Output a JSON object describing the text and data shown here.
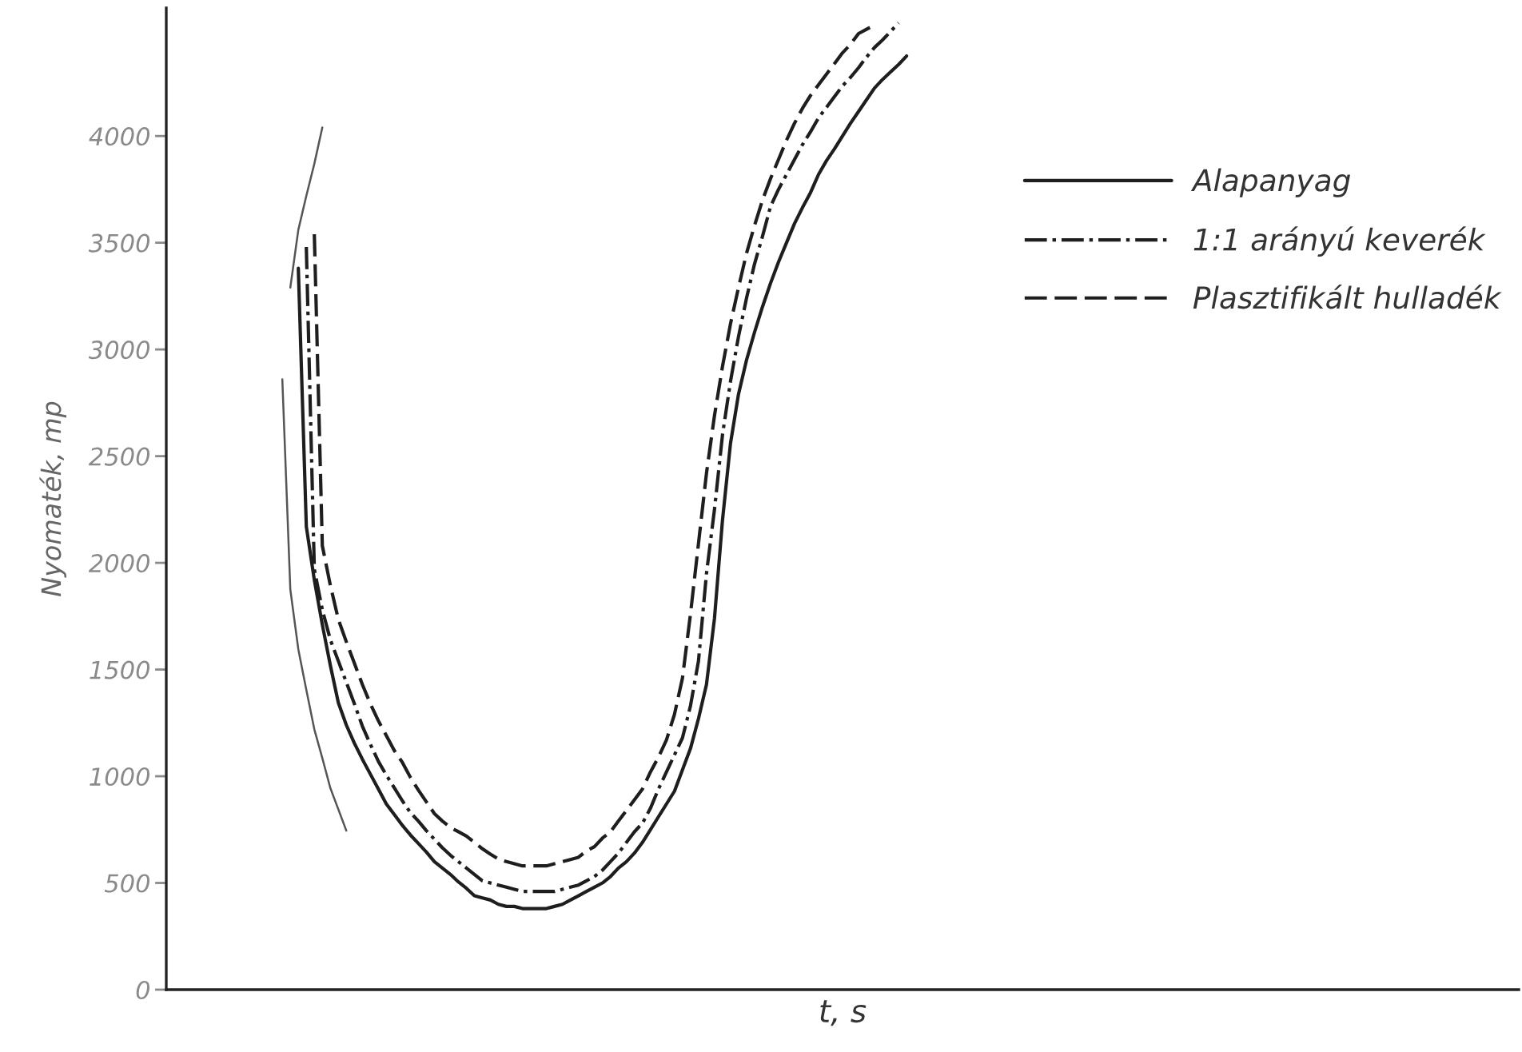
{
  "chart_data": {
    "type": "line",
    "xlabel": "t, s",
    "ylabel": "Nyomaték, mp",
    "categories": [
      null,
      null,
      null,
      null,
      null,
      null,
      null,
      null,
      null,
      null,
      null,
      null,
      null,
      null,
      null,
      null,
      null,
      null,
      null,
      null,
      null,
      null,
      null,
      null,
      null,
      null,
      null,
      null,
      null,
      null,
      null,
      null,
      null,
      null,
      null,
      null,
      null,
      null,
      null,
      null,
      null,
      null,
      null,
      null,
      null,
      null,
      null,
      null,
      null,
      null,
      null,
      null,
      null,
      null,
      null,
      null,
      null,
      null,
      null,
      null,
      null,
      null,
      null,
      null,
      null,
      null,
      null,
      null,
      null,
      null,
      null,
      null,
      null,
      null,
      null,
      null,
      null,
      null,
      null,
      null,
      null,
      null,
      null,
      null,
      null,
      null,
      null,
      null,
      null,
      null,
      null,
      null,
      null,
      null,
      null,
      null,
      null,
      null,
      null,
      null,
      null,
      null,
      null,
      null,
      null,
      null,
      null,
      null,
      null,
      null,
      null,
      null,
      null,
      null,
      null,
      null,
      null,
      null,
      null,
      null,
      null,
      null,
      null,
      null,
      null,
      null,
      null,
      null,
      null,
      null,
      null,
      null,
      null,
      null,
      null,
      null,
      null,
      null,
      null,
      null,
      null,
      null,
      null,
      null,
      null,
      null,
      null,
      null,
      null,
      null,
      null,
      null,
      null,
      null,
      null,
      null,
      null,
      null,
      null,
      null,
      null,
      null,
      null,
      null,
      null,
      null,
      null,
      null,
      null
    ],
    "ylim": [
      0,
      4600
    ],
    "yticks": [
      0,
      500,
      1000,
      1500,
      2000,
      2500,
      3000,
      3500,
      4000
    ],
    "legend": "top right",
    "series": [
      {
        "name": "Alapanyag",
        "color": "#1e1e1e",
        "line_style": "solid",
        "values": [
          null,
          null,
          null,
          null,
          null,
          null,
          null,
          null,
          null,
          null,
          null,
          null,
          null,
          null,
          null,
          null,
          3380,
          2170,
          1920,
          1710,
          1520,
          1345,
          1240,
          1155,
          1080,
          1010,
          940,
          870,
          820,
          770,
          725,
          685,
          645,
          600,
          570,
          540,
          505,
          475,
          440,
          430,
          420,
          400,
          390,
          390,
          380,
          380,
          380,
          380,
          390,
          400,
          420,
          440,
          460,
          480,
          500,
          530,
          570,
          600,
          640,
          690,
          750,
          810,
          870,
          930,
          1030,
          1130,
          1270,
          1430,
          1740,
          2200,
          2560,
          2790,
          2950,
          3080,
          3200,
          3310,
          3410,
          3500,
          3590,
          3665,
          3735,
          3820,
          3885,
          3940,
          4000,
          4060,
          4115,
          4170,
          4225,
          4265,
          4300,
          4335,
          4375,
          null,
          null,
          null,
          null,
          null,
          null,
          null,
          null,
          null,
          null,
          null,
          null,
          null,
          null,
          null,
          null,
          null,
          null,
          null,
          null,
          null,
          null,
          null,
          null,
          null,
          null,
          null,
          null,
          null,
          null,
          null,
          null,
          null,
          null,
          null,
          null,
          null,
          null,
          null,
          null,
          null,
          null,
          null,
          null,
          null,
          null,
          null,
          null,
          null,
          null,
          null,
          null,
          null,
          null,
          null,
          null,
          null,
          null,
          null,
          null,
          null,
          null,
          null,
          null,
          null,
          null,
          null,
          null,
          null,
          null,
          null,
          null,
          null,
          null,
          null,
          null
        ]
      },
      {
        "name": "1:1 arányú keverék",
        "color": "#1e1e1e",
        "line_style": "dashdot",
        "values": [
          null,
          null,
          null,
          null,
          null,
          null,
          null,
          null,
          null,
          null,
          null,
          null,
          null,
          null,
          null,
          null,
          null,
          3480,
          1970,
          1780,
          1640,
          1540,
          1440,
          1340,
          1235,
          1150,
          1070,
          1005,
          945,
          885,
          830,
          790,
          745,
          705,
          665,
          630,
          600,
          570,
          540,
          510,
          500,
          490,
          480,
          470,
          460,
          460,
          460,
          460,
          460,
          470,
          480,
          490,
          510,
          530,
          560,
          600,
          640,
          690,
          740,
          780,
          850,
          940,
          1020,
          1100,
          1180,
          1330,
          1540,
          1950,
          2250,
          2600,
          2850,
          3060,
          3240,
          3400,
          3530,
          3670,
          3750,
          3820,
          3890,
          3960,
          4020,
          4085,
          4135,
          4185,
          4235,
          4275,
          4320,
          4370,
          4415,
          4450,
          4490,
          4530,
          null,
          null,
          null,
          null,
          null,
          null,
          null,
          null,
          null,
          null,
          null,
          null,
          null,
          null,
          null,
          null,
          null,
          null,
          null,
          null,
          null,
          null,
          null,
          null,
          null,
          null,
          null,
          null,
          null,
          null,
          null,
          null,
          null,
          null,
          null,
          null,
          null,
          null,
          null,
          null,
          null,
          null,
          null,
          null,
          null,
          null,
          null,
          null,
          null,
          null,
          null,
          null,
          null,
          null,
          null,
          null,
          null,
          null,
          null,
          null,
          null,
          null,
          null,
          null,
          null,
          null,
          null,
          null,
          null,
          null,
          null,
          null,
          null,
          null,
          null,
          null,
          null
        ]
      },
      {
        "name": "Plasztifikált hulladék",
        "color": "#1e1e1e",
        "line_style": "dashed",
        "values": [
          null,
          null,
          null,
          null,
          null,
          null,
          null,
          null,
          null,
          null,
          null,
          null,
          null,
          null,
          null,
          null,
          null,
          null,
          3540,
          2080,
          1895,
          1735,
          1630,
          1530,
          1430,
          1340,
          1260,
          1190,
          1120,
          1065,
          995,
          935,
          880,
          825,
          790,
          760,
          740,
          720,
          690,
          660,
          635,
          612,
          600,
          590,
          580,
          580,
          580,
          580,
          590,
          600,
          610,
          620,
          650,
          670,
          710,
          740,
          790,
          840,
          890,
          940,
          1020,
          1090,
          1170,
          1290,
          1460,
          1760,
          2090,
          2420,
          2690,
          2920,
          3120,
          3290,
          3450,
          3580,
          3700,
          3800,
          3890,
          3980,
          4060,
          4130,
          4190,
          4240,
          4290,
          4340,
          4390,
          4430,
          4480,
          4500,
          4520,
          null,
          null,
          null,
          null,
          null,
          null,
          null,
          null,
          null,
          null,
          null,
          null,
          null,
          null,
          null,
          null,
          null,
          null,
          null,
          null,
          null,
          null,
          null,
          null,
          null,
          null,
          null,
          null,
          null,
          null,
          null,
          null,
          null,
          null,
          null,
          null,
          null,
          null,
          null,
          null,
          null,
          null,
          null,
          null,
          null,
          null,
          null,
          null,
          null,
          null,
          null,
          null,
          null,
          null,
          null,
          null,
          null,
          null,
          null,
          null,
          null,
          null,
          null,
          null,
          null,
          null,
          null,
          null,
          null,
          null,
          null,
          null,
          null,
          null,
          null,
          null,
          null,
          null,
          null,
          null
        ]
      },
      {
        "color": "#555555",
        "line_style": "solid",
        "values": [
          null,
          null,
          null,
          null,
          null,
          null,
          null,
          null,
          null,
          null,
          null,
          null,
          null,
          null,
          null,
          3290,
          3560,
          3720,
          3870,
          4040,
          null,
          null,
          null,
          null,
          null,
          null,
          null,
          null,
          null,
          null,
          null,
          null,
          null,
          null,
          null,
          null,
          null,
          null,
          null,
          null,
          null,
          null,
          null,
          null,
          null,
          null,
          null,
          null,
          null,
          null,
          null,
          null,
          null,
          null,
          null,
          null,
          null,
          null,
          null,
          null,
          null,
          null,
          null,
          null,
          null,
          null,
          null,
          null,
          null,
          null,
          null,
          null,
          null,
          null,
          null,
          null,
          null,
          null,
          null,
          null,
          null,
          null,
          null,
          null,
          null,
          null,
          null,
          null,
          null,
          null,
          null,
          null,
          null,
          null,
          null,
          null,
          null,
          null,
          null,
          null,
          null,
          null,
          null,
          null,
          null,
          null,
          null,
          null,
          null,
          null,
          null,
          null,
          null,
          null,
          null,
          null,
          null,
          null,
          null,
          null,
          null,
          null,
          null,
          null,
          null,
          null,
          null,
          null,
          null,
          null,
          null,
          null,
          null,
          null,
          null,
          null,
          null,
          null,
          null,
          null,
          null,
          null,
          null,
          null,
          null,
          null,
          null,
          null,
          null,
          null,
          null,
          null,
          null,
          null,
          null,
          null,
          null,
          null,
          null,
          null,
          null,
          null,
          null,
          null,
          null,
          null,
          null,
          null,
          null
        ]
      },
      {
        "color": "#555555",
        "line_style": "solid",
        "values": [
          null,
          null,
          null,
          null,
          null,
          null,
          null,
          null,
          null,
          null,
          null,
          null,
          null,
          null,
          2860,
          1875,
          1595,
          1405,
          1220,
          1085,
          945,
          845,
          745,
          null,
          null,
          null,
          null,
          null,
          null,
          null,
          null,
          null,
          null,
          null,
          null,
          null,
          null,
          null,
          null,
          null,
          null,
          null,
          null,
          null,
          null,
          null,
          null,
          null,
          null,
          null,
          null,
          null,
          null,
          null,
          null,
          null,
          null,
          null,
          null,
          null,
          null,
          null,
          null,
          null,
          null,
          null,
          null,
          null,
          null,
          null,
          null,
          null,
          null,
          null,
          null,
          null,
          null,
          null,
          null,
          null,
          null,
          null,
          null,
          null,
          null,
          null,
          null,
          null,
          null,
          null,
          null,
          null,
          null,
          null,
          null,
          null,
          null,
          null,
          null,
          null,
          null,
          null,
          null,
          null,
          null,
          null,
          null,
          null,
          null,
          null,
          null,
          null,
          null,
          null,
          null,
          null,
          null,
          null,
          null,
          null,
          null,
          null,
          null,
          null,
          null,
          null,
          null,
          null,
          null,
          null,
          null,
          null,
          null,
          null,
          null,
          null,
          null,
          null,
          null,
          null,
          null,
          null,
          null,
          null,
          null,
          null,
          null,
          null,
          null,
          null,
          null,
          null,
          null,
          null,
          null,
          null,
          null,
          null,
          null,
          null,
          null,
          null,
          null,
          null,
          null,
          null,
          null,
          null,
          null
        ]
      }
    ]
  }
}
